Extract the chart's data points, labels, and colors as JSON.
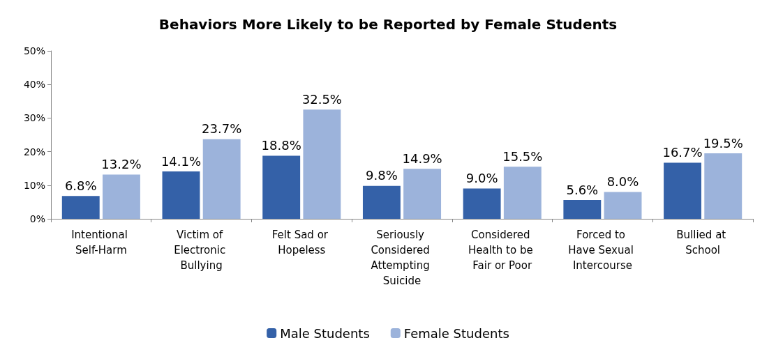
{
  "chart_data": {
    "type": "bar",
    "title": "Behaviors More Likely to be Reported by Female Students",
    "categories": [
      "Intentional Self-Harm",
      "Victim of Electronic Bullying",
      "Felt Sad or Hopeless",
      "Seriously Considered Attempting Suicide",
      "Considered Health to be Fair or Poor",
      "Forced to Have Sexual Intercourse",
      "Bullied at School"
    ],
    "series": [
      {
        "name": "Male Students",
        "color": "#3461a8",
        "values": [
          6.8,
          14.1,
          18.8,
          9.8,
          9.0,
          5.6,
          16.7
        ],
        "value_labels": [
          "6.8%",
          "14.1%",
          "18.8%",
          "9.8%",
          "9.0%",
          "5.6%",
          "16.7%"
        ]
      },
      {
        "name": "Female Students",
        "color": "#9cb3db",
        "values": [
          13.2,
          23.7,
          32.5,
          14.9,
          15.5,
          8.0,
          19.5
        ],
        "value_labels": [
          "13.2%",
          "23.7%",
          "32.5%",
          "14.9%",
          "15.5%",
          "8.0%",
          "19.5%"
        ]
      }
    ],
    "ylim": [
      0,
      50
    ],
    "yticks": [
      {
        "value": 0,
        "label": "0%"
      },
      {
        "value": 10,
        "label": "10%"
      },
      {
        "value": 20,
        "label": "20%"
      },
      {
        "value": 30,
        "label": "30%"
      },
      {
        "value": 40,
        "label": "40%"
      },
      {
        "value": 50,
        "label": "50%"
      }
    ],
    "grid": false,
    "legend": "bottom"
  }
}
